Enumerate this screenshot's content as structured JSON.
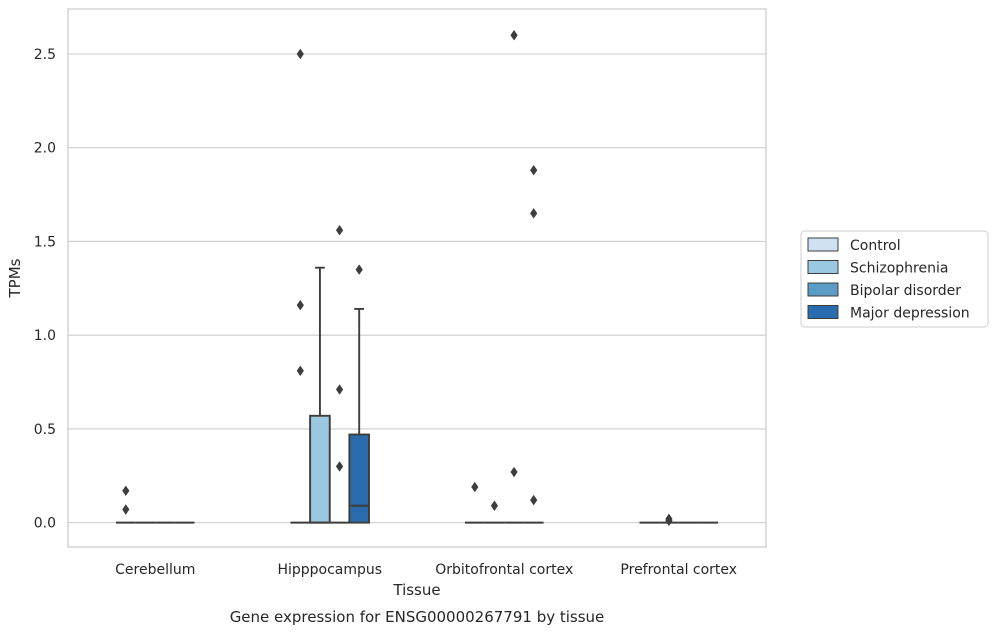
{
  "caption": "Gene expression for ENSG00000267791 by tissue",
  "chart_data": {
    "type": "box",
    "xlabel": "Tissue",
    "ylabel": "TPMs",
    "ylim": [
      -0.13,
      2.74
    ],
    "yticks": [
      "0.0",
      "0.5",
      "1.0",
      "1.5",
      "2.0",
      "2.5"
    ],
    "grid": true,
    "legend_position": "right",
    "categories": [
      "Cerebellum",
      "Hipppocampus",
      "Orbitofrontal cortex",
      "Prefrontal cortex"
    ],
    "series": [
      {
        "name": "Control",
        "color": "#d0e1f2",
        "boxes": [
          {
            "q1": 0,
            "median": 0,
            "q3": 0,
            "whisker_low": 0,
            "whisker_high": 0,
            "outliers": [
              0.17,
              0.07
            ]
          },
          {
            "q1": 0,
            "median": 0,
            "q3": 0,
            "whisker_low": 0,
            "whisker_high": 0,
            "outliers": [
              2.5,
              1.16,
              0.81
            ]
          },
          {
            "q1": 0,
            "median": 0,
            "q3": 0,
            "whisker_low": 0,
            "whisker_high": 0,
            "outliers": [
              0.19
            ]
          },
          {
            "q1": 0,
            "median": 0,
            "q3": 0,
            "whisker_low": 0,
            "whisker_high": 0,
            "outliers": []
          }
        ]
      },
      {
        "name": "Schizophrenia",
        "color": "#9ac8e0",
        "boxes": [
          {
            "q1": 0,
            "median": 0,
            "q3": 0,
            "whisker_low": 0,
            "whisker_high": 0,
            "outliers": []
          },
          {
            "q1": 0,
            "median": 0,
            "q3": 0.57,
            "whisker_low": 0,
            "whisker_high": 1.36,
            "outliers": []
          },
          {
            "q1": 0,
            "median": 0,
            "q3": 0,
            "whisker_low": 0,
            "whisker_high": 0,
            "outliers": [
              0.09
            ]
          },
          {
            "q1": 0,
            "median": 0,
            "q3": 0,
            "whisker_low": 0,
            "whisker_high": 0,
            "outliers": [
              0.02,
              0.01
            ]
          }
        ]
      },
      {
        "name": "Bipolar disorder",
        "color": "#5b9bc8",
        "boxes": [
          {
            "q1": 0,
            "median": 0,
            "q3": 0,
            "whisker_low": 0,
            "whisker_high": 0,
            "outliers": []
          },
          {
            "q1": 0,
            "median": 0,
            "q3": 0,
            "whisker_low": 0,
            "whisker_high": 0,
            "outliers": [
              1.56,
              0.71,
              0.3
            ]
          },
          {
            "q1": 0,
            "median": 0,
            "q3": 0,
            "whisker_low": 0,
            "whisker_high": 0,
            "outliers": [
              2.6,
              0.27
            ]
          },
          {
            "q1": 0,
            "median": 0,
            "q3": 0,
            "whisker_low": 0,
            "whisker_high": 0,
            "outliers": []
          }
        ]
      },
      {
        "name": "Major depression",
        "color": "#2a6bad",
        "boxes": [
          {
            "q1": 0,
            "median": 0,
            "q3": 0,
            "whisker_low": 0,
            "whisker_high": 0,
            "outliers": []
          },
          {
            "q1": 0,
            "median": 0.09,
            "q3": 0.47,
            "whisker_low": 0,
            "whisker_high": 1.14,
            "outliers": [
              1.35
            ]
          },
          {
            "q1": 0,
            "median": 0,
            "q3": 0,
            "whisker_low": 0,
            "whisker_high": 0,
            "outliers": [
              1.88,
              1.65,
              0.12
            ]
          },
          {
            "q1": 0,
            "median": 0,
            "q3": 0,
            "whisker_low": 0,
            "whisker_high": 0,
            "outliers": []
          }
        ]
      }
    ]
  }
}
